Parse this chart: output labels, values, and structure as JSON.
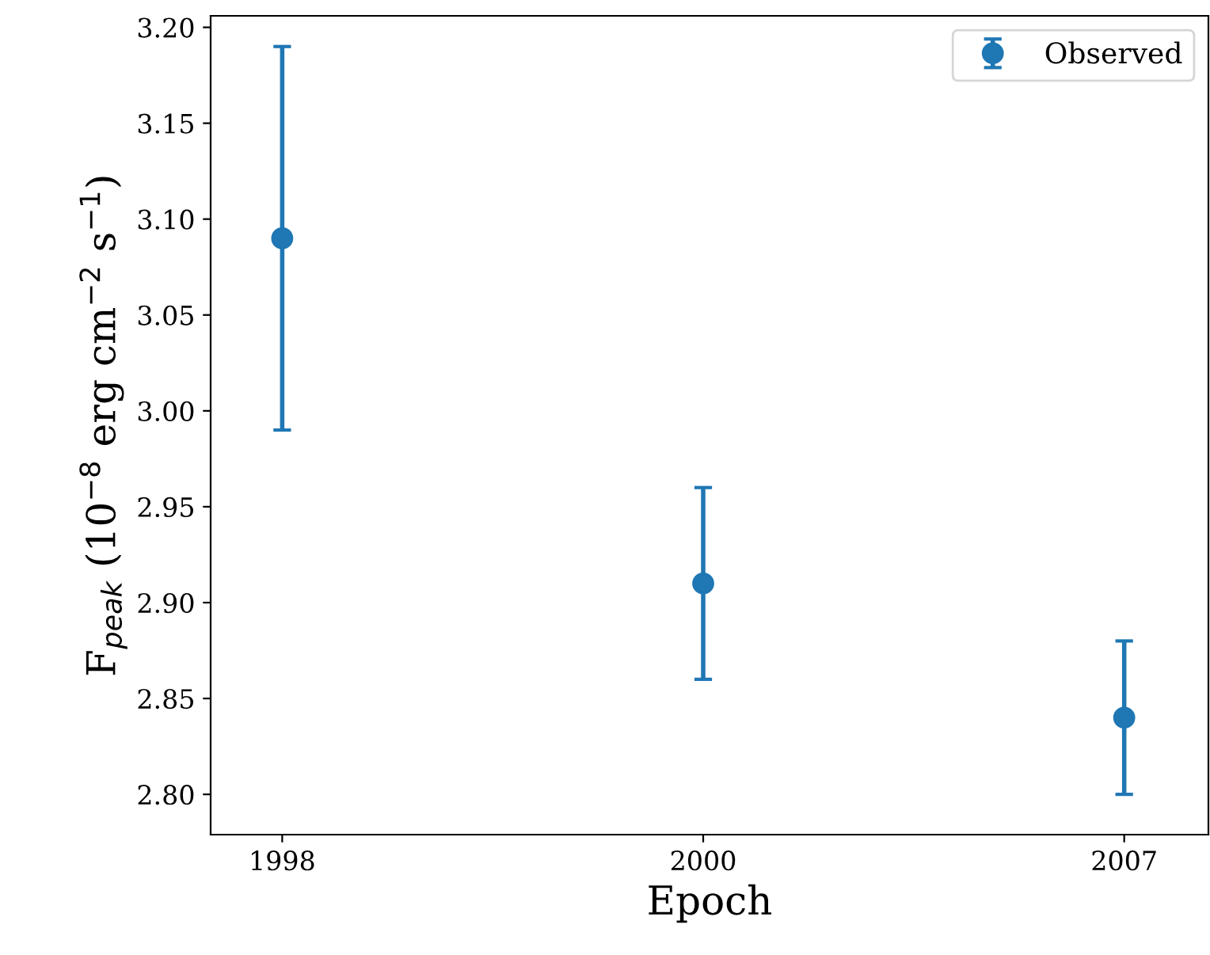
{
  "chart_data": {
    "type": "scatter",
    "xlabel": "Epoch",
    "ylabel": "F$_{peak}$ (10$^{−8}$ erg cm$^{−2}$ s$^{−1}$)",
    "categories": [
      "1998",
      "2000",
      "2007"
    ],
    "series": [
      {
        "name": "Observed",
        "color": "#1f77b4",
        "values": [
          3.09,
          2.91,
          2.84
        ],
        "errors": [
          0.1,
          0.05,
          0.04
        ]
      }
    ],
    "ylim": [
      2.779,
      3.206
    ],
    "yticks": [
      {
        "value": 2.8,
        "label": "2.80"
      },
      2.85,
      {
        "value": 2.9,
        "label": "2.90"
      },
      2.95,
      {
        "value": 3.0,
        "label": "3.00"
      },
      3.05,
      {
        "value": 3.1,
        "label": "3.10"
      },
      3.15,
      {
        "value": 3.2,
        "label": "3.20"
      }
    ],
    "marker": "circle",
    "legend": "top right",
    "grid": false
  }
}
